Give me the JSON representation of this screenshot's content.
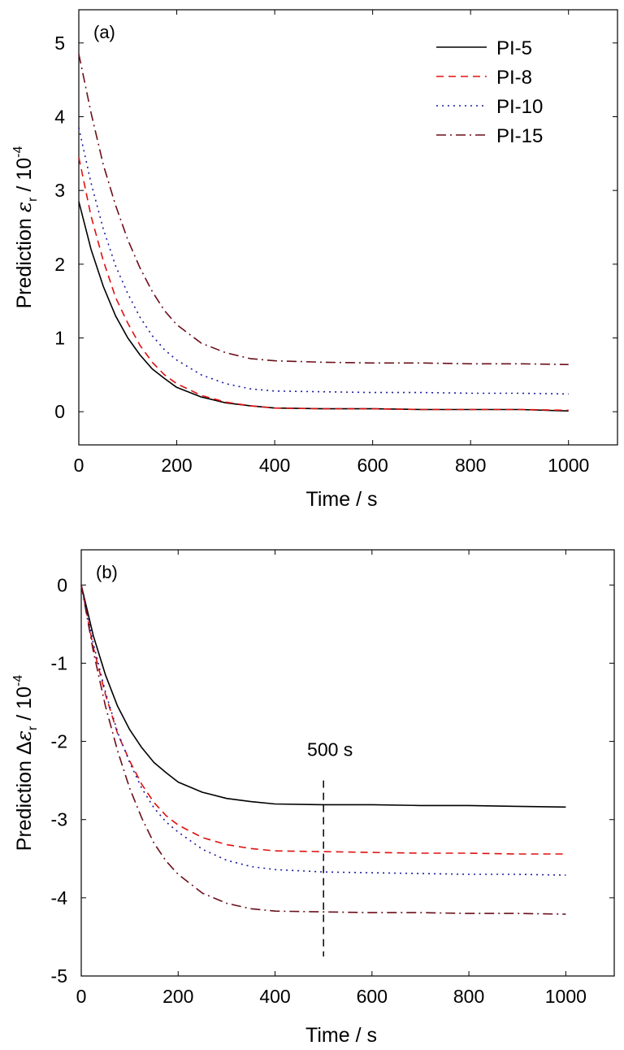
{
  "chart_data": [
    {
      "type": "line",
      "panel_label": "(a)",
      "xlabel": "Time / s",
      "ylabel_prefix": "Prediction ",
      "ylabel_symbol": "ε",
      "ylabel_sub": "r",
      "ylabel_suffix": " / 10",
      "ylabel_sup": "-4",
      "xlim": [
        0,
        1100
      ],
      "ylim": [
        -0.45,
        5.45
      ],
      "xticks": [
        0,
        200,
        400,
        600,
        800,
        1000
      ],
      "xtick_labels": [
        "0",
        "200",
        "400",
        "600",
        "800",
        "1000"
      ],
      "yticks": [
        0,
        1,
        2,
        3,
        4,
        5
      ],
      "ytick_labels": [
        "0",
        "1",
        "2",
        "3",
        "4",
        "5"
      ],
      "legend_position": "top-right",
      "grid": false,
      "series": [
        {
          "name": "PI-5",
          "color": "#000000",
          "style": "solid",
          "x": [
            0,
            25,
            50,
            75,
            100,
            125,
            150,
            175,
            200,
            250,
            300,
            350,
            400,
            500,
            600,
            700,
            800,
            900,
            1000
          ],
          "y": [
            2.85,
            2.2,
            1.7,
            1.3,
            1.0,
            0.77,
            0.58,
            0.45,
            0.33,
            0.2,
            0.12,
            0.08,
            0.05,
            0.04,
            0.04,
            0.03,
            0.03,
            0.03,
            0.01
          ]
        },
        {
          "name": "PI-8",
          "color": "#e01010",
          "style": "dashed",
          "x": [
            0,
            25,
            50,
            75,
            100,
            125,
            150,
            175,
            200,
            250,
            300,
            350,
            400,
            500,
            600,
            700,
            800,
            900,
            1000
          ],
          "y": [
            3.45,
            2.65,
            2.05,
            1.55,
            1.2,
            0.9,
            0.67,
            0.5,
            0.38,
            0.22,
            0.13,
            0.08,
            0.05,
            0.04,
            0.04,
            0.03,
            0.03,
            0.03,
            0.02
          ]
        },
        {
          "name": "PI-10",
          "color": "#1a1aa0",
          "style": "dotted",
          "x": [
            0,
            25,
            50,
            75,
            100,
            125,
            150,
            175,
            200,
            250,
            300,
            350,
            400,
            500,
            600,
            700,
            800,
            900,
            1000
          ],
          "y": [
            3.85,
            3.1,
            2.48,
            1.98,
            1.6,
            1.28,
            1.03,
            0.84,
            0.7,
            0.5,
            0.38,
            0.31,
            0.28,
            0.27,
            0.26,
            0.26,
            0.25,
            0.25,
            0.24
          ]
        },
        {
          "name": "PI-15",
          "color": "#6b0f1a",
          "style": "dashdot",
          "x": [
            0,
            25,
            50,
            75,
            100,
            125,
            150,
            175,
            200,
            250,
            300,
            350,
            400,
            500,
            600,
            700,
            800,
            900,
            1000
          ],
          "y": [
            4.85,
            4.05,
            3.35,
            2.8,
            2.33,
            1.95,
            1.63,
            1.37,
            1.18,
            0.93,
            0.8,
            0.72,
            0.69,
            0.67,
            0.66,
            0.66,
            0.65,
            0.65,
            0.64
          ]
        }
      ]
    },
    {
      "type": "line",
      "panel_label": "(b)",
      "xlabel": "Time / s",
      "ylabel_prefix": "Prediction Δ",
      "ylabel_symbol": "ε",
      "ylabel_sub": "r",
      "ylabel_suffix": " / 10",
      "ylabel_sup": "-4",
      "xlim": [
        0,
        1100
      ],
      "ylim": [
        -5,
        0.45
      ],
      "xticks": [
        0,
        200,
        400,
        600,
        800,
        1000
      ],
      "xtick_labels": [
        "0",
        "200",
        "400",
        "600",
        "800",
        "1000"
      ],
      "yticks": [
        0,
        -1,
        -2,
        -3,
        -4,
        -5
      ],
      "ytick_labels": [
        "0",
        "-1",
        "-2",
        "-3",
        "-4",
        "-5"
      ],
      "grid": false,
      "annotation": {
        "text": "500 s",
        "x": 500,
        "y_range": [
          -2.5,
          -4.75
        ]
      },
      "series": [
        {
          "name": "PI-5",
          "color": "#000000",
          "style": "solid",
          "x": [
            0,
            25,
            50,
            75,
            100,
            125,
            150,
            175,
            200,
            250,
            300,
            350,
            400,
            500,
            600,
            700,
            800,
            900,
            1000
          ],
          "y": [
            0,
            -0.65,
            -1.15,
            -1.55,
            -1.85,
            -2.08,
            -2.27,
            -2.4,
            -2.52,
            -2.65,
            -2.73,
            -2.77,
            -2.8,
            -2.81,
            -2.81,
            -2.82,
            -2.82,
            -2.83,
            -2.84
          ]
        },
        {
          "name": "PI-8",
          "color": "#e01010",
          "style": "dashed",
          "x": [
            0,
            25,
            50,
            75,
            100,
            125,
            150,
            175,
            200,
            250,
            300,
            350,
            400,
            500,
            600,
            700,
            800,
            900,
            1000
          ],
          "y": [
            0,
            -0.8,
            -1.4,
            -1.9,
            -2.25,
            -2.55,
            -2.78,
            -2.95,
            -3.07,
            -3.23,
            -3.32,
            -3.37,
            -3.4,
            -3.41,
            -3.42,
            -3.43,
            -3.43,
            -3.44,
            -3.44
          ]
        },
        {
          "name": "PI-10",
          "color": "#1a1aa0",
          "style": "dotted",
          "x": [
            0,
            25,
            50,
            75,
            100,
            125,
            150,
            175,
            200,
            250,
            300,
            350,
            400,
            500,
            600,
            700,
            800,
            900,
            1000
          ],
          "y": [
            0,
            -0.75,
            -1.37,
            -1.88,
            -2.27,
            -2.6,
            -2.85,
            -3.03,
            -3.16,
            -3.38,
            -3.52,
            -3.6,
            -3.64,
            -3.67,
            -3.68,
            -3.69,
            -3.7,
            -3.7,
            -3.71
          ]
        },
        {
          "name": "PI-15",
          "color": "#6b0f1a",
          "style": "dashdot",
          "x": [
            0,
            25,
            50,
            75,
            100,
            125,
            150,
            175,
            200,
            250,
            300,
            350,
            400,
            500,
            600,
            700,
            800,
            900,
            1000
          ],
          "y": [
            0,
            -0.85,
            -1.55,
            -2.12,
            -2.6,
            -2.98,
            -3.3,
            -3.53,
            -3.7,
            -3.94,
            -4.07,
            -4.14,
            -4.17,
            -4.18,
            -4.19,
            -4.19,
            -4.2,
            -4.2,
            -4.21
          ]
        }
      ]
    }
  ]
}
